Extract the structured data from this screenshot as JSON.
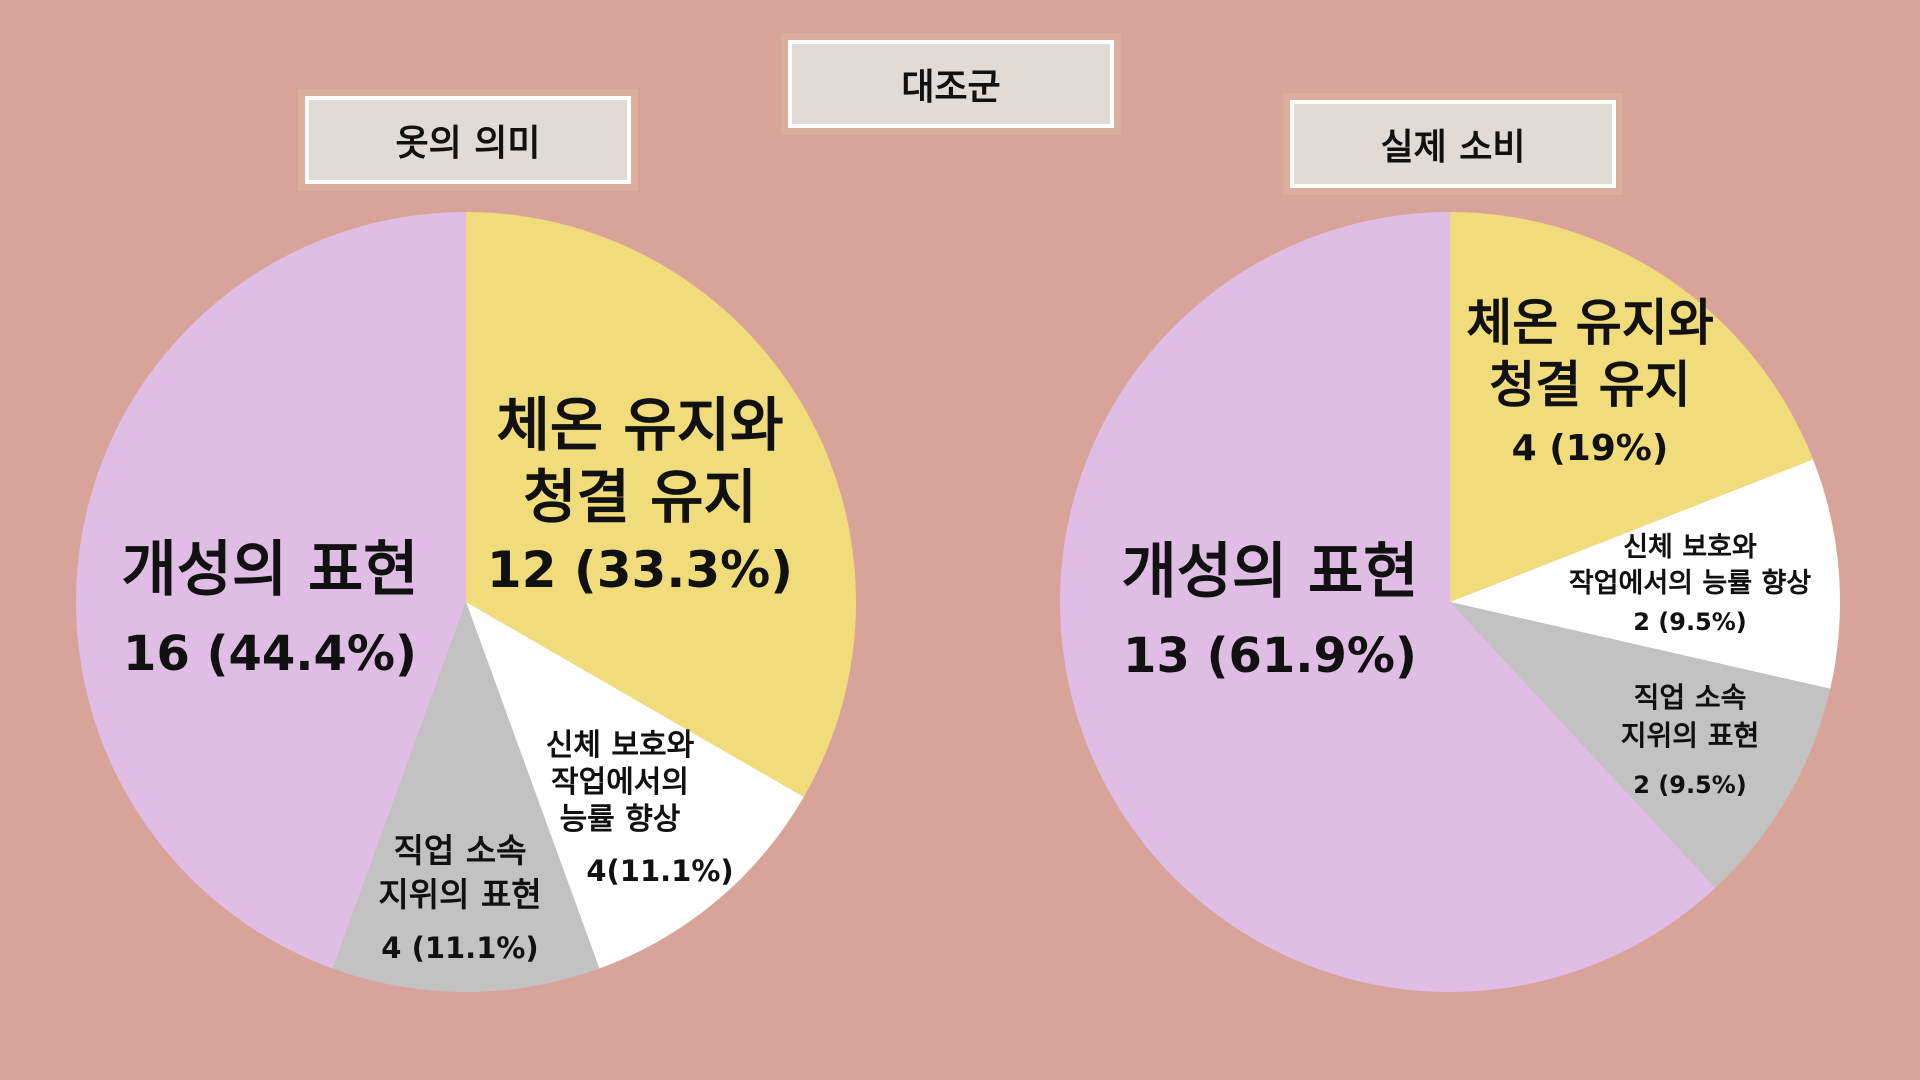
{
  "group_label": "대조군",
  "chart_data": [
    {
      "type": "pie",
      "title": "옷의 의미",
      "slices": [
        {
          "label": "체온 유지와 청결 유지",
          "lines": [
            "체온 유지와",
            "청결 유지"
          ],
          "value": 12,
          "display": "12 (33.3%)",
          "color": "#f0dc7a"
        },
        {
          "label": "신체 보호와 작업에서의 능률 향상",
          "lines": [
            "신체 보호와",
            "작업에서의",
            "능률 향상"
          ],
          "value": 4,
          "display": "4(11.1%)",
          "color": "#ffffff"
        },
        {
          "label": "직업 소속 지위의 표현",
          "lines": [
            "직업 소속",
            "지위의 표현"
          ],
          "value": 4,
          "display": "4 (11.1%)",
          "color": "#c2c2c2"
        },
        {
          "label": "개성의 표현",
          "lines": [
            "개성의 표현"
          ],
          "value": 16,
          "display": "16 (44.4%)",
          "color": "#e0bde4"
        }
      ]
    },
    {
      "type": "pie",
      "title": "실제 소비",
      "slices": [
        {
          "label": "체온 유지와 청결 유지",
          "lines": [
            "체온 유지와",
            "청결 유지"
          ],
          "value": 4,
          "display": "4 (19%)",
          "color": "#f0dc7a"
        },
        {
          "label": "신체 보호와 작업에서의 능률 향상",
          "lines": [
            "신체 보호와",
            "작업에서의 능률 향상"
          ],
          "value": 2,
          "display": "2 (9.5%)",
          "color": "#ffffff"
        },
        {
          "label": "직업 소속 지위의 표현",
          "lines": [
            "직업 소속",
            "지위의 표현"
          ],
          "value": 2,
          "display": "2 (9.5%)",
          "color": "#c2c2c2"
        },
        {
          "label": "개성의 표현",
          "lines": [
            "개성의 표현"
          ],
          "value": 13,
          "display": "13 (61.9%)",
          "color": "#e0bde4"
        }
      ]
    }
  ]
}
